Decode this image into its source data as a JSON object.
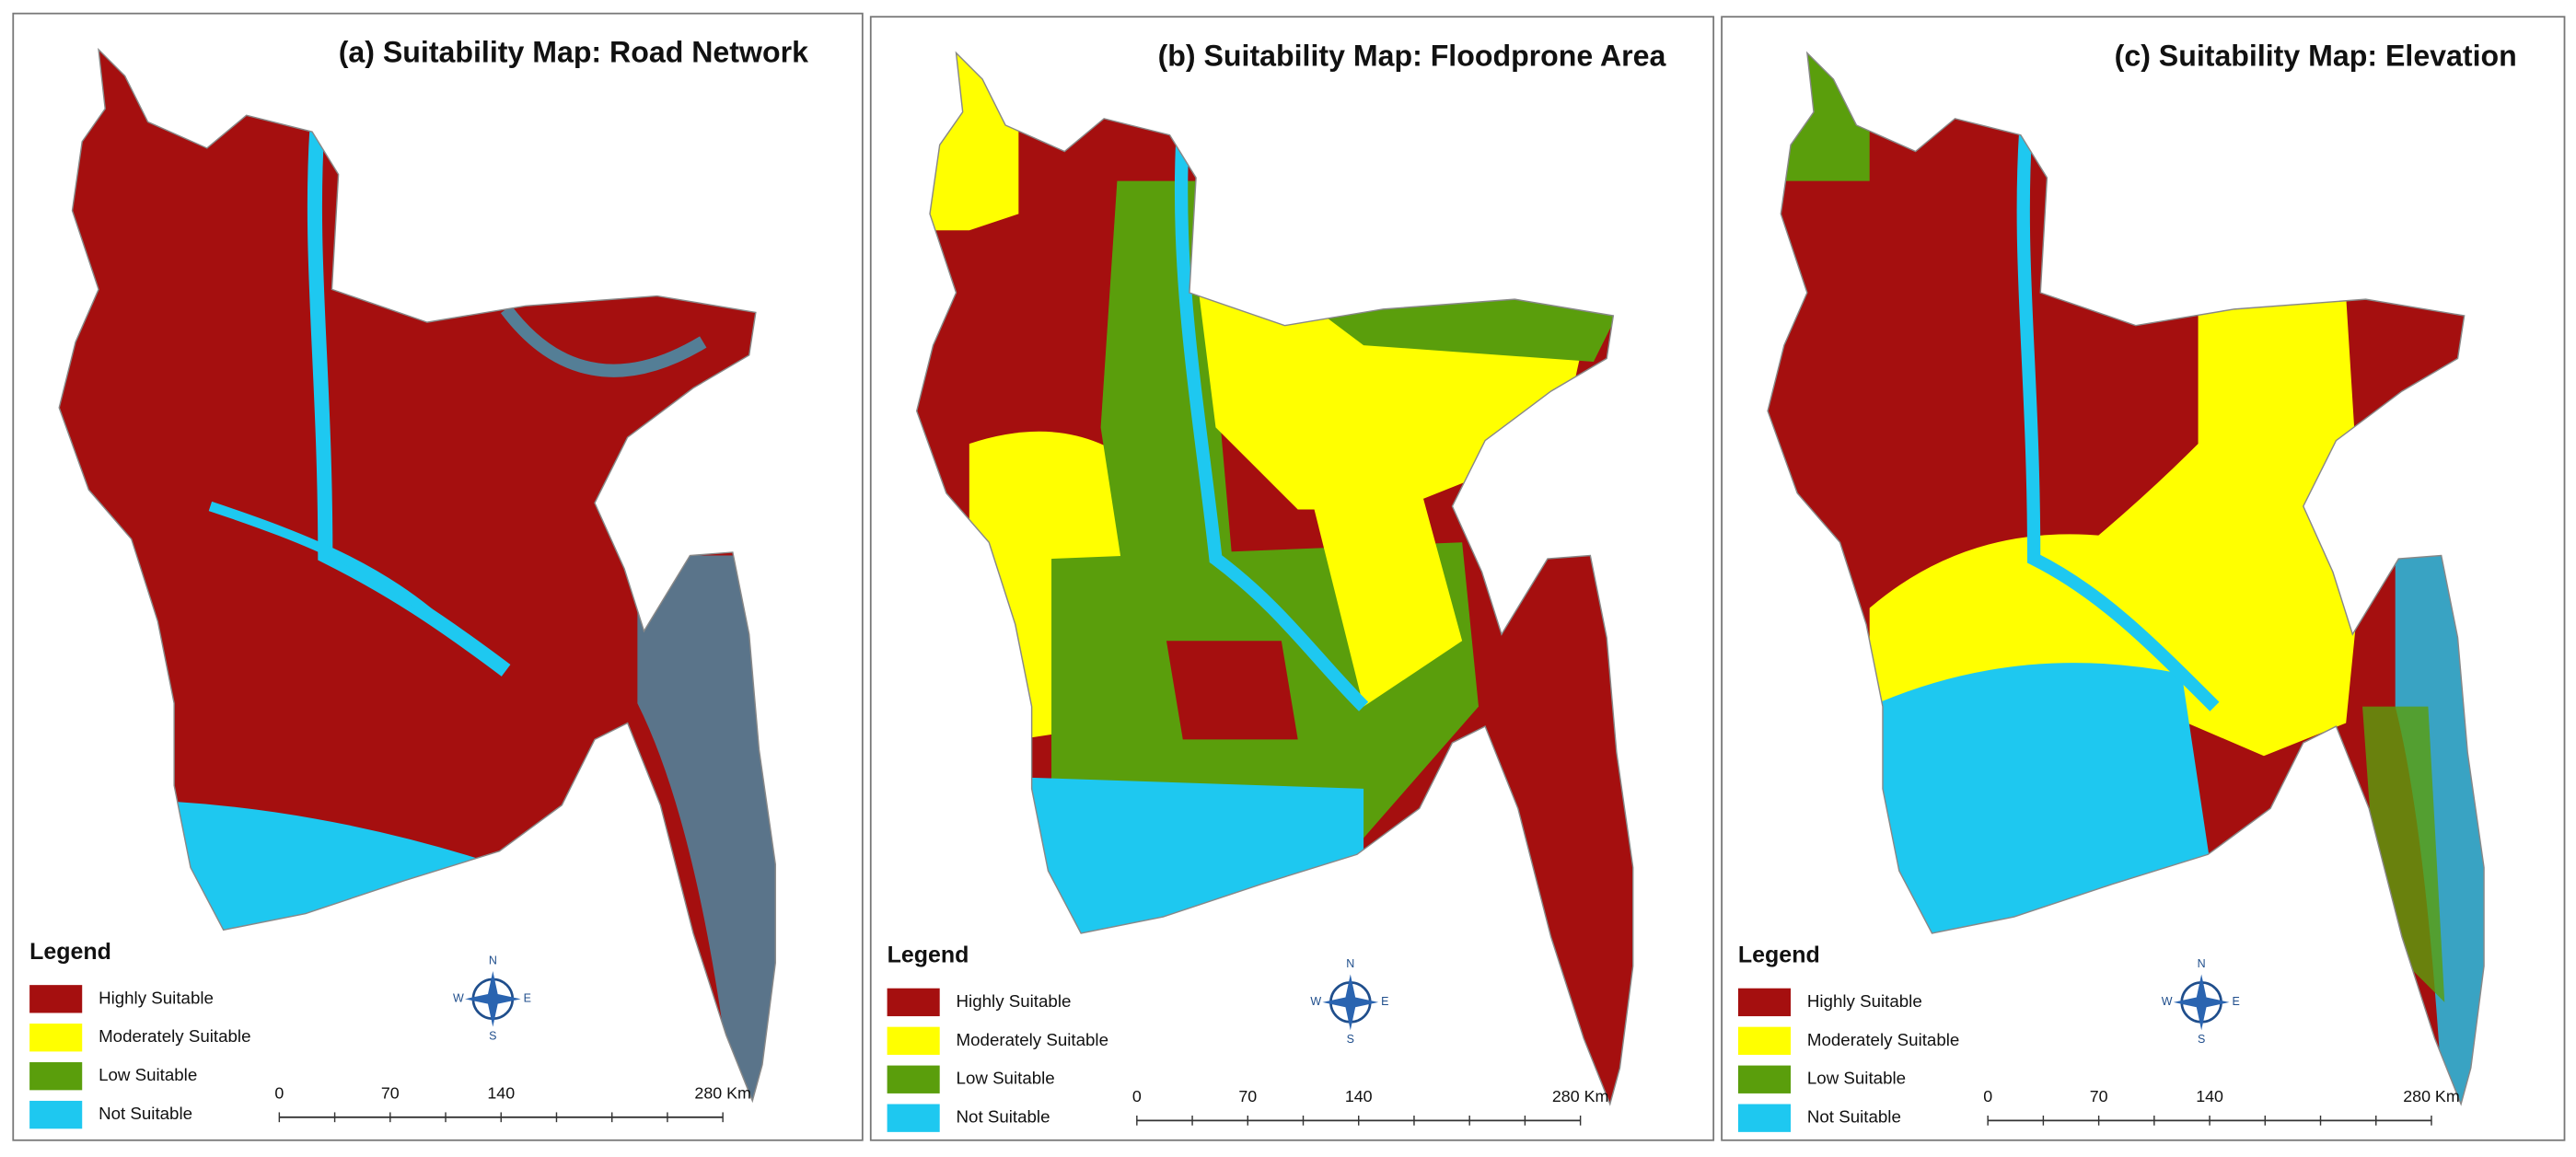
{
  "panels": [
    {
      "title": "(a) Suitability Map: Road Network",
      "legend": {
        "title": "Legend",
        "items": [
          {
            "label": "Highly Suitable",
            "color": "#a50f0f"
          },
          {
            "label": "Moderately Suitable",
            "color": "#ffff00"
          },
          {
            "label": "Low Suitable",
            "color": "#5a9e0c"
          },
          {
            "label": "Not Suitable",
            "color": "#1ec8f0"
          }
        ]
      },
      "compass": {
        "n": "N",
        "e": "E",
        "s": "S",
        "w": "W"
      },
      "scale": [
        "0",
        "70",
        "140",
        "280 Km"
      ]
    },
    {
      "title": "(b) Suitability Map: Floodprone Area",
      "legend": {
        "title": "Legend",
        "items": [
          {
            "label": "Highly Suitable",
            "color": "#a50f0f"
          },
          {
            "label": "Moderately Suitable",
            "color": "#ffff00"
          },
          {
            "label": "Low Suitable",
            "color": "#5a9e0c"
          },
          {
            "label": "Not Suitable",
            "color": "#1ec8f0"
          }
        ]
      },
      "compass": {
        "n": "N",
        "e": "E",
        "s": "S",
        "w": "W"
      },
      "scale": [
        "0",
        "70",
        "140",
        "280 Km"
      ]
    },
    {
      "title": "(c) Suitability Map: Elevation",
      "legend": {
        "title": "Legend",
        "items": [
          {
            "label": "Highly Suitable",
            "color": "#a50f0f"
          },
          {
            "label": "Moderately Suitable",
            "color": "#ffff00"
          },
          {
            "label": "Low Suitable",
            "color": "#5a9e0c"
          },
          {
            "label": "Not Suitable",
            "color": "#1ec8f0"
          }
        ]
      },
      "compass": {
        "n": "N",
        "e": "E",
        "s": "S",
        "w": "W"
      },
      "scale": [
        "0",
        "70",
        "140",
        "280 Km"
      ]
    }
  ]
}
